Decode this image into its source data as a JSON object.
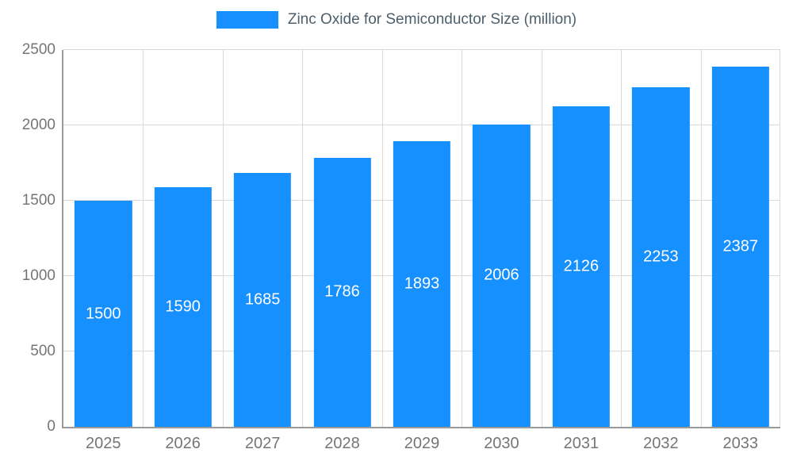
{
  "legend": {
    "label": "Zinc Oxide for Semiconductor Size (million)"
  },
  "colors": {
    "bar": "#1690ff",
    "grid": "#d9d9d9",
    "axis": "#9a9a9a",
    "tick_text": "#757575",
    "value_text": "#ffffff",
    "legend_text": "#4d5f6b"
  },
  "chart_data": {
    "type": "bar",
    "title": "Zinc Oxide for Semiconductor Size (million)",
    "categories": [
      "2025",
      "2026",
      "2027",
      "2028",
      "2029",
      "2030",
      "2031",
      "2032",
      "2033"
    ],
    "values": [
      1500,
      1590,
      1685,
      1786,
      1893,
      2006,
      2126,
      2253,
      2387
    ],
    "xlabel": "",
    "ylabel": "",
    "ylim": [
      0,
      2500
    ],
    "yticks": [
      0,
      500,
      1000,
      1500,
      2000,
      2500
    ],
    "grid": true,
    "legend_position": "top-center",
    "value_labels": "inside-center"
  }
}
